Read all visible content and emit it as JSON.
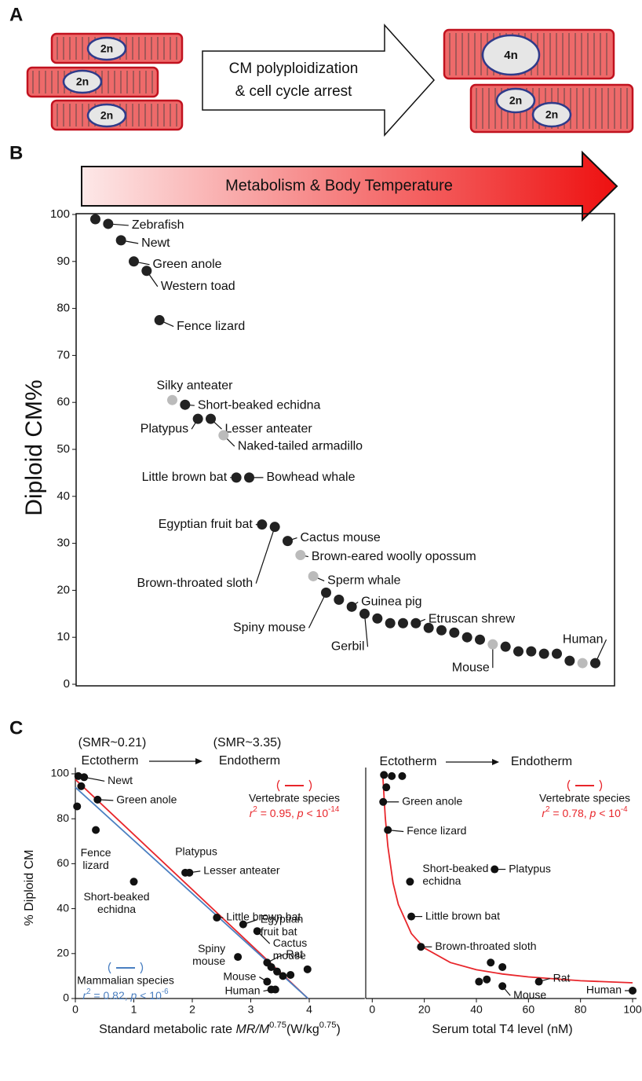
{
  "panel_labels": [
    "A",
    "B",
    "C"
  ],
  "panel_a": {
    "left_nuclei": [
      "2n",
      "2n",
      "2n"
    ],
    "arrow_text": [
      "CM polyploidization",
      "& cell cycle arrest"
    ],
    "right_nuclei": [
      "4n",
      "2n",
      "2n"
    ]
  },
  "chart_data": [
    {
      "type": "scatter",
      "arrow_label": "Metabolism & Body Temperature",
      "ylabel": "Diploid CM%",
      "x": [
        1,
        2,
        3,
        4,
        5,
        6,
        7,
        8,
        9,
        10,
        11,
        12,
        13,
        14,
        15,
        16,
        17,
        18,
        19,
        20,
        21,
        22,
        23,
        24,
        25,
        26,
        27,
        28,
        29,
        30,
        31,
        32,
        33,
        34,
        35,
        36,
        37,
        38,
        39,
        40
      ],
      "values": [
        99,
        98,
        94.5,
        90,
        88,
        77.5,
        60.5,
        59.5,
        56.5,
        56.5,
        53,
        44,
        44,
        34,
        33.5,
        30.5,
        27.5,
        23,
        19.5,
        18,
        16.5,
        15,
        14,
        13,
        13,
        13,
        12,
        11.5,
        11,
        10,
        9.5,
        8.5,
        8,
        7,
        7,
        6.5,
        6.5,
        5,
        4.5,
        4.5
      ],
      "point_labels": [
        null,
        "Zebrafish",
        "Newt",
        "Green anole",
        "Western toad",
        "Fence lizard",
        "Silky anteater",
        "Short-beaked echidna",
        "Platypus",
        "Lesser anteater",
        "Naked-tailed armadillo",
        "Little brown bat",
        "Bowhead whale",
        "Egyptian fruit bat",
        "Brown-throated sloth",
        "Cactus mouse",
        "Brown-eared woolly opossum",
        "Sperm whale",
        "Spiny mouse",
        null,
        "Guinea pig",
        "Gerbil",
        null,
        null,
        null,
        "Etruscan shrew",
        null,
        null,
        null,
        null,
        null,
        "Mouse",
        null,
        null,
        null,
        null,
        null,
        null,
        null,
        "Human"
      ],
      "point_colors": [
        "#222",
        "#222",
        "#222",
        "#222",
        "#222",
        "#222",
        "#bbb",
        "#222",
        "#222",
        "#222",
        "#bbb",
        "#222",
        "#222",
        "#222",
        "#222",
        "#222",
        "#bbb",
        "#bbb",
        "#222",
        "#222",
        "#222",
        "#222",
        "#222",
        "#222",
        "#222",
        "#222",
        "#222",
        "#222",
        "#222",
        "#222",
        "#222",
        "#bbb",
        "#222",
        "#222",
        "#222",
        "#222",
        "#222",
        "#222",
        "#bbb",
        "#222"
      ],
      "xlim": [
        -0.5,
        41.5
      ],
      "ylim": [
        0,
        100
      ],
      "yticks": [
        0,
        10,
        20,
        30,
        40,
        50,
        60,
        70,
        80,
        90,
        100
      ]
    },
    {
      "type": "scatter",
      "annotations": {
        "smr": [
          "(SMR~0.21)",
          "(SMR~3.35)"
        ],
        "ecto": "Ectotherm",
        "endo": "Endotherm"
      },
      "ylabel": "% Diploid CM",
      "xlabel": [
        {
          "text": "Standard metabolic rate "
        },
        {
          "text": "MR/M",
          "italic": true
        },
        {
          "text": "0.75",
          "sup": true
        },
        {
          "text": "(W/kg"
        },
        {
          "text": "0.75",
          "sup": true
        },
        {
          "text": ")"
        }
      ],
      "x": [
        0.05,
        0.15,
        0.1,
        0.03,
        0.38,
        0.35,
        1.0,
        1.88,
        1.95,
        2.42,
        2.87,
        3.11,
        2.78,
        3.28,
        3.35,
        3.45,
        3.55,
        3.68,
        3.97,
        3.28,
        3.35,
        3.42
      ],
      "values": [
        99,
        98.5,
        94.5,
        85.5,
        88.5,
        75,
        52,
        56,
        56,
        36,
        33,
        30,
        18.5,
        16,
        14,
        12,
        10,
        10.5,
        13,
        7.5,
        4,
        4
      ],
      "point_labels": [
        null,
        "Newt",
        null,
        null,
        "Green anole",
        [
          "Fence",
          "lizard"
        ],
        [
          "Short-beaked",
          "echidna"
        ],
        "Platypus",
        "Lesser anteater",
        "Little brown bat",
        [
          "Egyptian",
          "fruit bat"
        ],
        [
          "Cactus",
          "mouse"
        ],
        [
          "Spiny",
          "mouse"
        ],
        "Rat",
        null,
        null,
        null,
        null,
        null,
        "Mouse",
        "Human",
        null
      ],
      "color": "#111",
      "series": [
        {
          "name": "Vertebrate species",
          "color": "#e8262b",
          "x": [
            0,
            3.98
          ],
          "values": [
            97.5,
            0
          ],
          "stats": [
            {
              "text": "r",
              "italic": true
            },
            {
              "text": "2",
              "sup": true
            },
            {
              "text": " = 0.95, "
            },
            {
              "text": "p",
              "italic": true
            },
            {
              "text": " < 10"
            },
            {
              "text": "-14",
              "sup": true
            }
          ]
        },
        {
          "name": "Mammalian species",
          "color": "#4a7fc1",
          "x": [
            0,
            3.98
          ],
          "values": [
            94,
            0
          ],
          "stats": [
            {
              "text": "r",
              "italic": true
            },
            {
              "text": "2",
              "sup": true
            },
            {
              "text": " = 0.82, "
            },
            {
              "text": "p",
              "italic": true
            },
            {
              "text": " < 10"
            },
            {
              "text": "-6",
              "sup": true
            }
          ]
        }
      ],
      "xlim": [
        0,
        4.95
      ],
      "ylim": [
        0,
        100
      ],
      "xticks": [
        0,
        1,
        2,
        3,
        4
      ],
      "yticks": [
        0,
        20,
        40,
        60,
        80,
        100
      ]
    },
    {
      "type": "scatter",
      "annotations": {
        "ecto": "Ectotherm",
        "endo": "Endotherm"
      },
      "xlabel": [
        {
          "text": "Serum total T4 level (nM)"
        }
      ],
      "x": [
        4.5,
        7.5,
        11.5,
        5.4,
        4.2,
        6,
        14.5,
        47,
        15,
        18.7,
        45.5,
        44,
        50,
        41,
        50,
        64,
        100
      ],
      "values": [
        99.5,
        99,
        99,
        94,
        87.5,
        75,
        52,
        57.5,
        36.5,
        23,
        16,
        8.5,
        14,
        7.5,
        5.5,
        7.5,
        3.5
      ],
      "point_labels": [
        null,
        null,
        null,
        null,
        "Green anole",
        "Fence lizard",
        [
          "Short-beaked",
          "echidna"
        ],
        "Platypus",
        "Little brown bat",
        "Brown-throated sloth",
        null,
        null,
        null,
        null,
        "Mouse",
        "Rat",
        "Human"
      ],
      "color": "#111",
      "series": [
        {
          "name": "Vertebrate species",
          "color": "#e8262b",
          "x": [
            4,
            5,
            6,
            8,
            10,
            15,
            20,
            30,
            40,
            50,
            60,
            80,
            100
          ],
          "values": [
            100,
            80.6,
            67.7,
            51.5,
            41.9,
            28.9,
            22.5,
            16,
            12.8,
            10.9,
            9.6,
            7.9,
            7
          ],
          "stats": [
            {
              "text": "r",
              "italic": true
            },
            {
              "text": "2",
              "sup": true
            },
            {
              "text": " = 0.78, "
            },
            {
              "text": "p",
              "italic": true
            },
            {
              "text": " < 10"
            },
            {
              "text": "-4",
              "sup": true
            }
          ]
        }
      ],
      "xlim": [
        -2.5,
        101.5
      ],
      "ylim": [
        0,
        100
      ],
      "xticks": [
        0,
        20,
        40,
        60,
        80,
        100
      ]
    }
  ]
}
